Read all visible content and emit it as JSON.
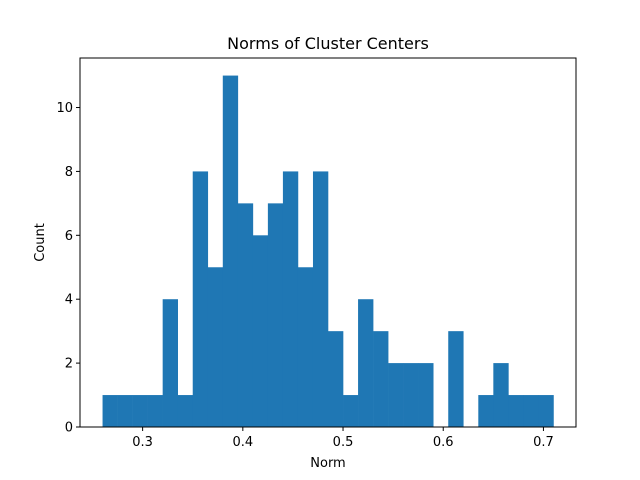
{
  "chart_data": {
    "type": "bar",
    "title": "Norms of Cluster Centers",
    "xlabel": "Norm",
    "ylabel": "Count",
    "xlim": [
      0.2375,
      0.7325
    ],
    "ylim": [
      0,
      11.55
    ],
    "xticks": [
      0.3,
      0.4,
      0.5,
      0.6,
      0.7
    ],
    "xtick_labels": [
      "0.3",
      "0.4",
      "0.5",
      "0.6",
      "0.7"
    ],
    "yticks": [
      0,
      2,
      4,
      6,
      8,
      10
    ],
    "ytick_labels": [
      "0",
      "2",
      "4",
      "6",
      "8",
      "10"
    ],
    "bin_edges": [
      0.26,
      0.275,
      0.29,
      0.305,
      0.32,
      0.335,
      0.35,
      0.365,
      0.38,
      0.395,
      0.41,
      0.425,
      0.44,
      0.455,
      0.47,
      0.485,
      0.5,
      0.515,
      0.53,
      0.545,
      0.56,
      0.575,
      0.59,
      0.605,
      0.62,
      0.635,
      0.65,
      0.665,
      0.68,
      0.695,
      0.71
    ],
    "values": [
      1,
      1,
      1,
      1,
      4,
      1,
      8,
      5,
      11,
      7,
      6,
      7,
      8,
      5,
      8,
      3,
      1,
      4,
      3,
      2,
      2,
      2,
      0,
      3,
      0,
      1,
      2,
      1,
      1,
      1
    ],
    "bar_color": "#1f77b4",
    "grid": false,
    "legend": "none"
  }
}
